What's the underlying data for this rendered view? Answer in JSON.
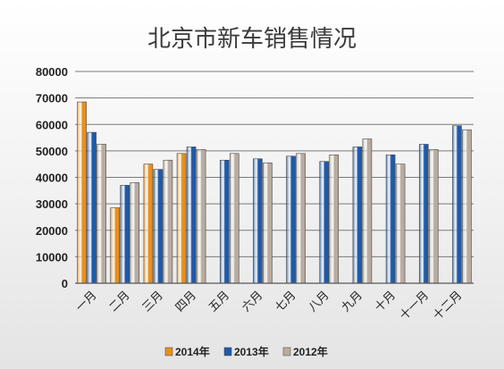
{
  "chart_data": {
    "type": "bar",
    "title": "北京市新车销售情况",
    "categories": [
      "一月",
      "二月",
      "三月",
      "四月",
      "五月",
      "六月",
      "七月",
      "八月",
      "九月",
      "十月",
      "十一月",
      "十二月"
    ],
    "series": [
      {
        "name": "2014年",
        "color": "#e8901c",
        "values": [
          68500,
          28500,
          45000,
          49000,
          null,
          null,
          null,
          null,
          null,
          null,
          null,
          null
        ]
      },
      {
        "name": "2013年",
        "color": "#1f5aa8",
        "values": [
          57000,
          37000,
          43000,
          51500,
          46500,
          47000,
          48000,
          46000,
          51500,
          48500,
          52500,
          59500
        ]
      },
      {
        "name": "2012年",
        "color": "#b8aca0",
        "values": [
          52500,
          38000,
          46500,
          50500,
          49000,
          45500,
          49000,
          48500,
          54500,
          45000,
          50500,
          58000
        ]
      }
    ],
    "ylim": [
      0,
      80000
    ],
    "yticks": [
      0,
      10000,
      20000,
      30000,
      40000,
      50000,
      60000,
      70000,
      80000
    ],
    "grid": true,
    "legend_position": "bottom",
    "xlabel": "",
    "ylabel": ""
  }
}
